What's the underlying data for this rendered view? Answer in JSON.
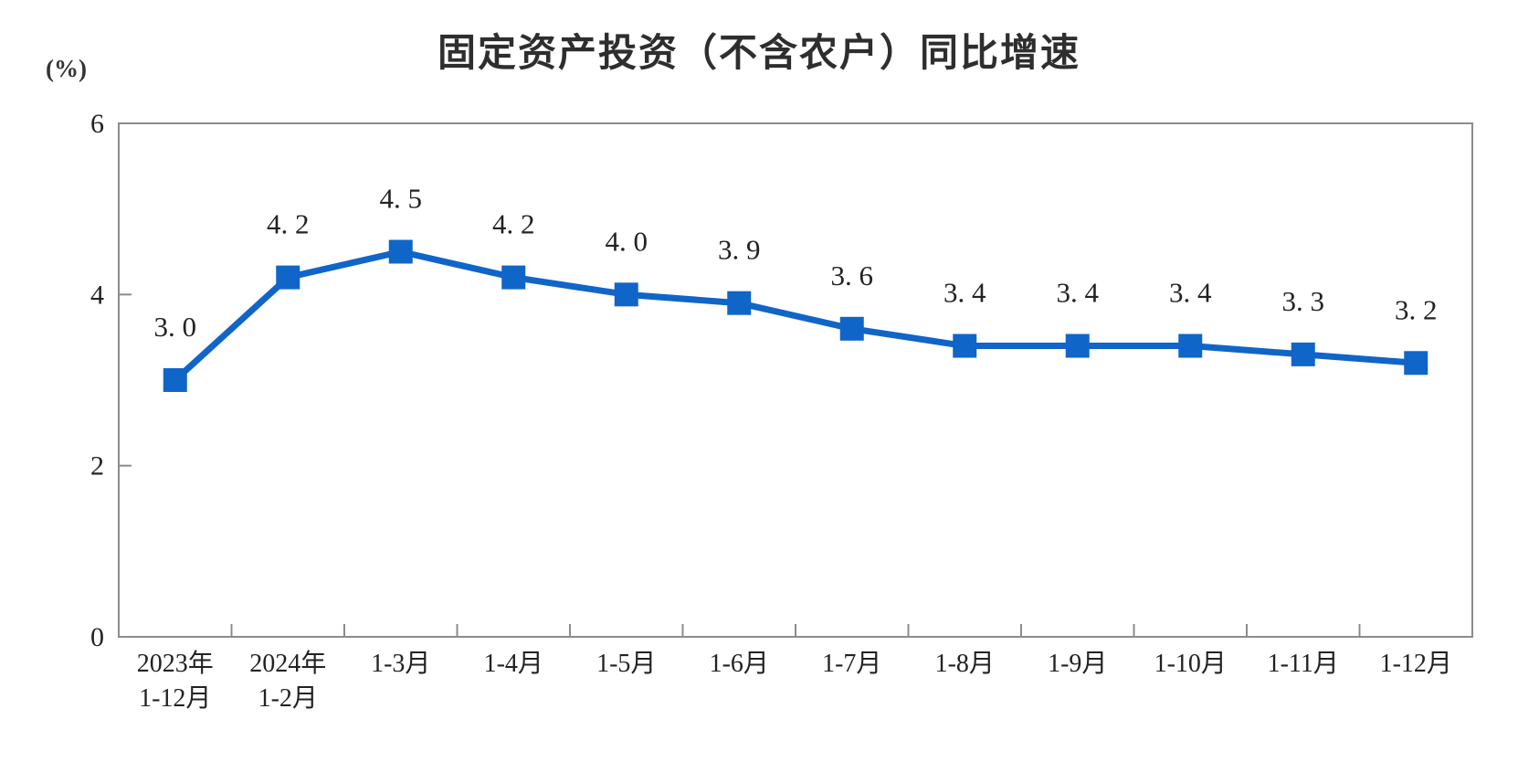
{
  "page": {
    "title": "固定资产投资（不含农户）同比增速",
    "unit_label": "(%)"
  },
  "chart_data": {
    "type": "line",
    "title": "固定资产投资（不含农户）同比增速",
    "ylabel": "(%)",
    "xlabel": "",
    "categories": [
      "2023年\n1-12月",
      "2024年\n1-2月",
      "1-3月",
      "1-4月",
      "1-5月",
      "1-6月",
      "1-7月",
      "1-8月",
      "1-9月",
      "1-10月",
      "1-11月",
      "1-12月"
    ],
    "values": [
      3.0,
      4.2,
      4.5,
      4.2,
      4.0,
      3.9,
      3.6,
      3.4,
      3.4,
      3.4,
      3.3,
      3.2
    ],
    "point_labels": [
      "3. 0",
      "4. 2",
      "4. 5",
      "4. 2",
      "4. 0",
      "3. 9",
      "3. 6",
      "3. 4",
      "3. 4",
      "3. 4",
      "3. 3",
      "3. 2"
    ],
    "ylim": [
      0,
      6
    ],
    "yticks": [
      0,
      2,
      4,
      6
    ],
    "grid": false,
    "legend_position": "none",
    "line_color": "#1065C8",
    "marker": "square",
    "marker_size": 26,
    "line_width": 7,
    "label_text_color": "#333333",
    "axis_color": "#8c8c8c",
    "tick_text_color": "#222222"
  }
}
